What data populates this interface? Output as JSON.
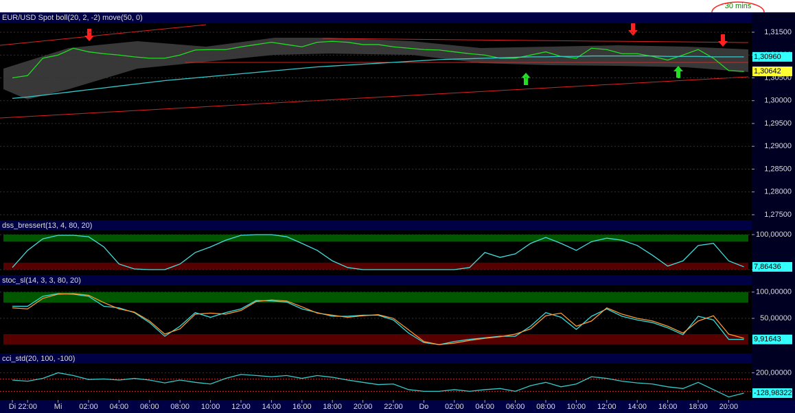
{
  "toolbar": {
    "timeframe": "30 mins"
  },
  "chart_data": [
    {
      "type": "line",
      "title": "EUR/USD Spot boll(20, 2, -2) move(50, 0)",
      "series": [
        {
          "color": "#22dd22",
          "values": [
            1.305,
            1.3055,
            1.3093,
            1.31,
            1.3115,
            1.3107,
            1.3103,
            1.31,
            1.3096,
            1.3093,
            1.3093,
            1.31,
            1.3111,
            1.3112,
            1.3112,
            1.3118,
            1.3123,
            1.3128,
            1.3123,
            1.3118,
            1.3128,
            1.313,
            1.3128,
            1.3123,
            1.3123,
            1.3118,
            1.3115,
            1.3112,
            1.3111,
            1.3107,
            1.3103,
            1.31,
            1.3093,
            1.3093,
            1.31,
            1.3107,
            1.3097,
            1.3093,
            1.3115,
            1.3112,
            1.3103,
            1.3103,
            1.3097,
            1.3089,
            1.31,
            1.3112,
            1.3093,
            1.3066,
            1.3064
          ]
        },
        {
          "color": "#33cccc",
          "values": [
            1.3005,
            1.3008,
            1.3012,
            1.3016,
            1.302,
            1.3024,
            1.3028,
            1.3032,
            1.3036,
            1.304,
            1.3044,
            1.3047,
            1.305,
            1.3053,
            1.3056,
            1.3059,
            1.3062,
            1.3065,
            1.3068,
            1.3071,
            1.3074,
            1.3076,
            1.3078,
            1.308,
            1.3082,
            1.3084,
            1.3086,
            1.3088,
            1.309,
            1.3091,
            1.3092,
            1.3093,
            1.3094,
            1.3095,
            1.3096,
            1.3096,
            1.3097,
            1.3097,
            1.3098,
            1.3098,
            1.3098,
            1.3098,
            1.3098,
            1.3097,
            1.3097,
            1.3097,
            1.3096,
            1.3096,
            1.3096
          ]
        }
      ],
      "ylim": [
        1.2747,
        1.3168
      ],
      "yticks": [
        {
          "value": 1.315,
          "label": "1,31500"
        },
        {
          "value": 1.31,
          "label": "1,31000"
        },
        {
          "value": 1.305,
          "label": "1,30500"
        },
        {
          "value": 1.3,
          "label": "1,30000"
        },
        {
          "value": 1.295,
          "label": "1,29500"
        },
        {
          "value": 1.29,
          "label": "1,29000"
        },
        {
          "value": 1.285,
          "label": "1,28500"
        },
        {
          "value": 1.28,
          "label": "1,28000"
        },
        {
          "value": 1.275,
          "label": "1,27500"
        }
      ],
      "markers": [
        {
          "value": 1.3096,
          "label": "1,30960",
          "color": "#33ffff"
        },
        {
          "value": 1.30642,
          "label": "1,30642",
          "color": "#ffff33"
        }
      ]
    },
    {
      "type": "line",
      "title": "dss_bressert(13, 4, 80, 20)",
      "series": [
        {
          "color": "#44dddd",
          "values": [
            6,
            55,
            88,
            98,
            98,
            94,
            65,
            16,
            2,
            0,
            0,
            16,
            49,
            65,
            84,
            98,
            100,
            100,
            94,
            75,
            55,
            25,
            6,
            0,
            0,
            0,
            0,
            0,
            0,
            0,
            6,
            49,
            35,
            45,
            75,
            92,
            75,
            55,
            80,
            90,
            84,
            69,
            41,
            10,
            25,
            69,
            75,
            25,
            8
          ]
        }
      ],
      "ylim": [
        -13.7,
        109.8
      ],
      "yticks": [
        {
          "value": 100,
          "label": "100,00000"
        },
        0
      ],
      "zones": [
        {
          "from": 80,
          "to": 100,
          "color": "#006600"
        },
        {
          "from": 0,
          "to": 20,
          "color": "#660000"
        }
      ],
      "markers": [
        {
          "value": 7.86436,
          "label": "7,86436",
          "color": "#33ffff"
        }
      ]
    },
    {
      "type": "line",
      "title": "stoc_sl(14, 3, 3, 80, 20)",
      "series": [
        {
          "color": "#33dddd",
          "values": [
            73,
            73,
            92,
            97,
            96,
            92,
            73,
            70,
            61,
            42,
            16,
            35,
            61,
            52,
            61,
            68,
            84,
            83,
            81,
            68,
            61,
            54,
            54,
            56,
            56,
            47,
            22,
            4,
            0,
            6,
            10,
            13,
            16,
            16,
            35,
            61,
            52,
            29,
            54,
            68,
            54,
            47,
            42,
            32,
            19,
            54,
            47,
            10,
            10
          ]
        },
        {
          "color": "#ff9933",
          "values": [
            70,
            68,
            88,
            96,
            97,
            94,
            80,
            68,
            62,
            45,
            20,
            30,
            58,
            60,
            58,
            65,
            82,
            85,
            83,
            72,
            60,
            56,
            52,
            55,
            57,
            50,
            28,
            6,
            0,
            3,
            8,
            12,
            15,
            20,
            30,
            55,
            60,
            35,
            45,
            70,
            58,
            50,
            45,
            35,
            22,
            45,
            55,
            20,
            12
          ]
        }
      ],
      "ylim": [
        -15.2,
        111.4
      ],
      "yticks": [
        {
          "value": 100,
          "label": "100,00000"
        },
        {
          "value": 50,
          "label": "50,00000"
        }
      ],
      "zones": [
        {
          "from": 80,
          "to": 100,
          "color": "#006600"
        },
        {
          "from": 0,
          "to": 20,
          "color": "#660000"
        }
      ],
      "markers": [
        {
          "value": 9.91643,
          "label": "9,91643",
          "color": "#33ffff"
        }
      ]
    },
    {
      "type": "line",
      "title": "cci_std(20, 100, -100)",
      "categories": [
        "Di",
        "22:00",
        null,
        "Mi",
        null,
        "02:00",
        null,
        "04:00",
        null,
        "06:00",
        null,
        "08:00",
        null,
        "10:00",
        null,
        "12:00",
        null,
        "14:00",
        null,
        "16:00",
        null,
        "18:00",
        null,
        "20:00",
        null,
        "22:00",
        null,
        "Do",
        null,
        "02:00",
        null,
        "04:00",
        null,
        "06:00",
        null,
        "08:00",
        null,
        "10:00",
        null,
        "12:00",
        null,
        "14:00",
        null,
        "16:00",
        null,
        "18:00",
        null,
        "20:00",
        null
      ],
      "series": [
        {
          "color": "#33cccc",
          "values": [
            82,
            64,
            109,
            200,
            155,
            91,
            100,
            82,
            109,
            82,
            36,
            82,
            45,
            18,
            109,
            173,
            155,
            136,
            155,
            109,
            155,
            127,
            82,
            45,
            9,
            18,
            -73,
            -100,
            -100,
            -73,
            -100,
            -73,
            -55,
            -100,
            -9,
            45,
            -27,
            18,
            136,
            109,
            64,
            36,
            18,
            -27,
            -55,
            45,
            -73,
            -191,
            -129
          ]
        }
      ],
      "ylim": [
        -229,
        337
      ],
      "yticks": [
        {
          "value": 200,
          "label": "200,00000"
        }
      ],
      "levels": [
        100,
        -100
      ],
      "markers": [
        {
          "value": -128.98322,
          "label": "-128,98322",
          "color": "#33ffff"
        }
      ]
    }
  ]
}
